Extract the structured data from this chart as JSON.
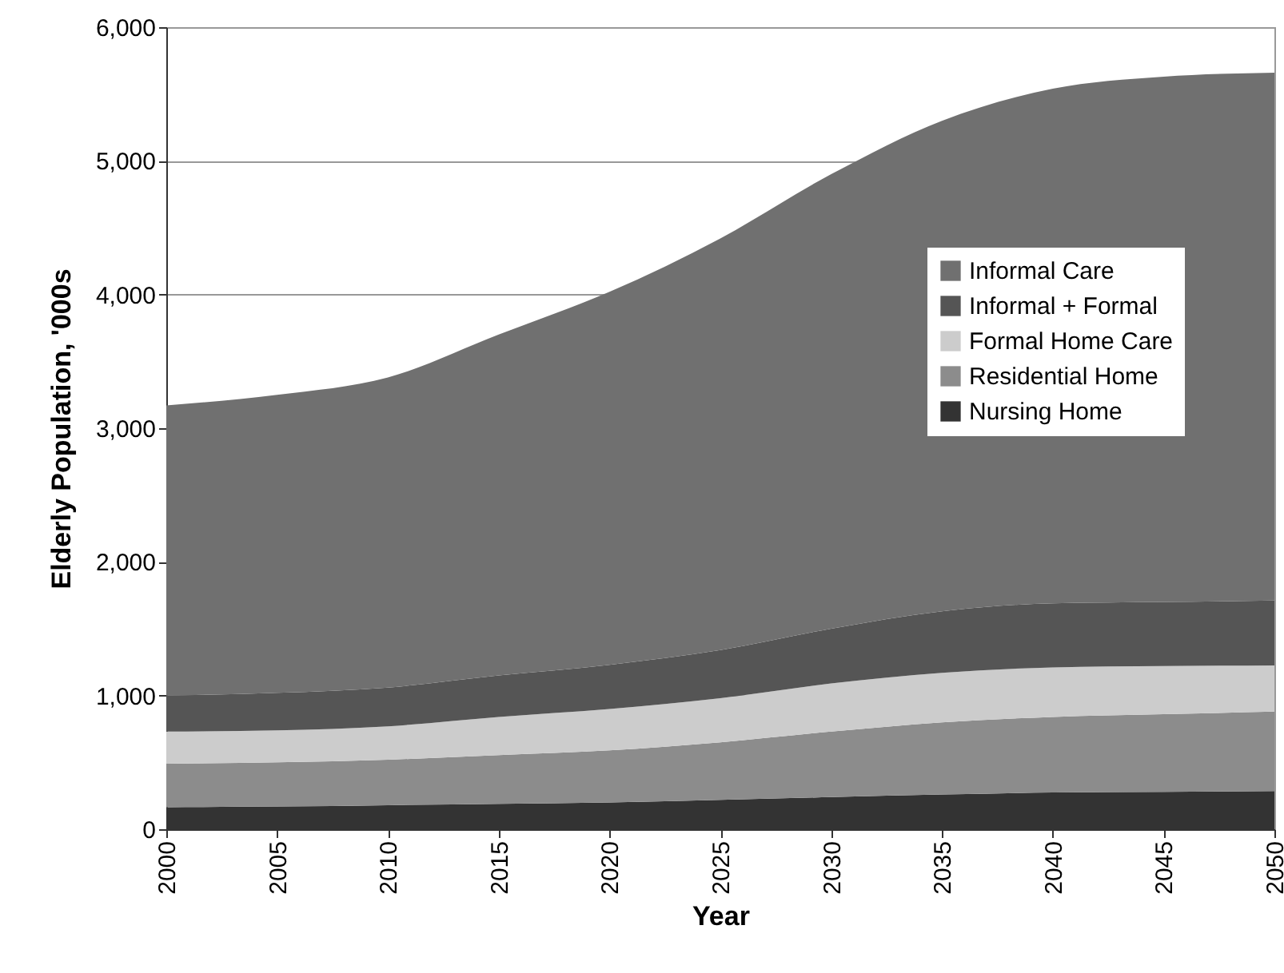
{
  "chart_data": {
    "type": "area",
    "stacked": true,
    "xlabel": "Year",
    "ylabel": "Elderly Population, '000s",
    "x": [
      2000,
      2005,
      2010,
      2015,
      2020,
      2025,
      2030,
      2035,
      2040,
      2045,
      2050
    ],
    "xlim": [
      2000,
      2050
    ],
    "xticks": [
      2000,
      2005,
      2010,
      2015,
      2020,
      2025,
      2030,
      2035,
      2040,
      2045,
      2050
    ],
    "ylim": [
      0,
      6000
    ],
    "yticks": [
      {
        "value": 0,
        "label": "0"
      },
      {
        "value": 1000,
        "label": "1,000"
      },
      {
        "value": 2000,
        "label": "2,000"
      },
      {
        "value": 3000,
        "label": "3,000"
      },
      {
        "value": 4000,
        "label": "4,000"
      },
      {
        "value": 5000,
        "label": "5,000"
      },
      {
        "value": 6000,
        "label": "6,000"
      }
    ],
    "grid": "y",
    "legend": "right",
    "series": [
      {
        "name": "Nursing Home",
        "color": "#333333",
        "values": [
          165,
          170,
          180,
          190,
          200,
          220,
          240,
          260,
          275,
          280,
          285
        ]
      },
      {
        "name": "Residential Home",
        "color": "#8c8c8c",
        "values": [
          325,
          330,
          340,
          365,
          390,
          430,
          490,
          540,
          565,
          580,
          595
        ]
      },
      {
        "name": "Formal Home Care",
        "color": "#cccccc",
        "values": [
          240,
          240,
          250,
          285,
          310,
          330,
          360,
          370,
          370,
          360,
          345
        ]
      },
      {
        "name": "Informal + Formal",
        "color": "#555555",
        "values": [
          270,
          280,
          290,
          310,
          330,
          360,
          410,
          460,
          480,
          480,
          485
        ]
      },
      {
        "name": "Informal Care",
        "color": "#707070",
        "values": [
          2170,
          2230,
          2320,
          2550,
          2790,
          3080,
          3400,
          3670,
          3850,
          3930,
          3950
        ]
      }
    ]
  }
}
